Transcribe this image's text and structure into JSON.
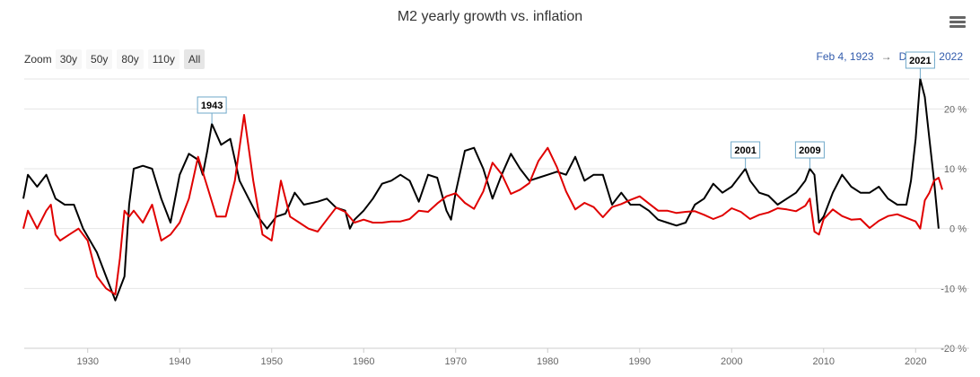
{
  "title": "M2 yearly growth vs. inflation",
  "zoom": {
    "label": "Zoom",
    "buttons": [
      "30y",
      "50y",
      "80y",
      "110y",
      "All"
    ],
    "selected": "All"
  },
  "range": {
    "from": "Feb 4, 1923",
    "separator": "→",
    "to": "Dec 31, 2022"
  },
  "colors": {
    "m2": "#000000",
    "inflation": "#e00000",
    "flag_border": "#6fa8c9",
    "grid": "#e6e6e6"
  },
  "chart_data": {
    "type": "line",
    "title": "M2 yearly growth vs. inflation",
    "xlim": [
      1923.1,
      2022.9
    ],
    "ylim": [
      -20,
      25
    ],
    "x_ticks": [
      "1930",
      "1940",
      "1950",
      "1960",
      "1970",
      "1980",
      "1990",
      "2000",
      "2010",
      "2020"
    ],
    "y_ticks": [
      "20 %",
      "10 %",
      "0 %",
      "-10 %",
      "-20 %"
    ],
    "grid": true,
    "series": [
      {
        "color": "#000000",
        "points": [
          [
            1923,
            5
          ],
          [
            1923.5,
            9
          ],
          [
            1924.5,
            7
          ],
          [
            1925.5,
            9
          ],
          [
            1926.5,
            5
          ],
          [
            1927.5,
            4
          ],
          [
            1928.5,
            4
          ],
          [
            1929.5,
            0
          ],
          [
            1931,
            -4
          ],
          [
            1932,
            -8
          ],
          [
            1933,
            -12
          ],
          [
            1934,
            -8
          ],
          [
            1934.5,
            4
          ],
          [
            1935,
            10
          ],
          [
            1936,
            10.5
          ],
          [
            1937,
            10
          ],
          [
            1938,
            5
          ],
          [
            1939,
            1
          ],
          [
            1940,
            9
          ],
          [
            1941,
            12.5
          ],
          [
            1942,
            11.5
          ],
          [
            1942.5,
            9
          ],
          [
            1943,
            13
          ],
          [
            1943.5,
            17.5
          ],
          [
            1944.5,
            14
          ],
          [
            1945.5,
            15
          ],
          [
            1946.5,
            8
          ],
          [
            1947.5,
            5
          ],
          [
            1948.5,
            2
          ],
          [
            1949.5,
            0
          ],
          [
            1950.5,
            2
          ],
          [
            1951.5,
            2.5
          ],
          [
            1952.5,
            6
          ],
          [
            1953.5,
            4
          ],
          [
            1955,
            4.5
          ],
          [
            1956,
            5
          ],
          [
            1957,
            3.5
          ],
          [
            1958,
            3
          ],
          [
            1958.5,
            0
          ],
          [
            1959,
            1.5
          ],
          [
            1960,
            3
          ],
          [
            1961,
            5
          ],
          [
            1962,
            7.5
          ],
          [
            1963,
            8
          ],
          [
            1964,
            9
          ],
          [
            1965,
            8
          ],
          [
            1966,
            4.5
          ],
          [
            1967,
            9
          ],
          [
            1968,
            8.5
          ],
          [
            1969,
            3
          ],
          [
            1969.5,
            1.5
          ],
          [
            1970,
            6
          ],
          [
            1971,
            13
          ],
          [
            1972,
            13.5
          ],
          [
            1973,
            10
          ],
          [
            1974,
            5
          ],
          [
            1975,
            9
          ],
          [
            1976,
            12.5
          ],
          [
            1977,
            10
          ],
          [
            1978,
            8
          ],
          [
            1979,
            8.5
          ],
          [
            1980,
            9
          ],
          [
            1981,
            9.5
          ],
          [
            1982,
            9
          ],
          [
            1983,
            12
          ],
          [
            1984,
            8
          ],
          [
            1985,
            9
          ],
          [
            1986,
            9
          ],
          [
            1987,
            4
          ],
          [
            1988,
            6
          ],
          [
            1989,
            4
          ],
          [
            1990,
            4
          ],
          [
            1991,
            3
          ],
          [
            1992,
            1.5
          ],
          [
            1993,
            1
          ],
          [
            1994,
            0.5
          ],
          [
            1995,
            1
          ],
          [
            1996,
            4
          ],
          [
            1997,
            5
          ],
          [
            1998,
            7.5
          ],
          [
            1999,
            6
          ],
          [
            2000,
            7
          ],
          [
            2001,
            9
          ],
          [
            2001.5,
            10
          ],
          [
            2002,
            8
          ],
          [
            2003,
            6
          ],
          [
            2004,
            5.5
          ],
          [
            2005,
            4
          ],
          [
            2006,
            5
          ],
          [
            2007,
            6
          ],
          [
            2008,
            8
          ],
          [
            2008.5,
            10
          ],
          [
            2009,
            9
          ],
          [
            2009.5,
            1
          ],
          [
            2010,
            2
          ],
          [
            2011,
            6
          ],
          [
            2012,
            9
          ],
          [
            2013,
            7
          ],
          [
            2014,
            6
          ],
          [
            2015,
            6
          ],
          [
            2016,
            7
          ],
          [
            2017,
            5
          ],
          [
            2018,
            4
          ],
          [
            2019,
            4
          ],
          [
            2019.5,
            8
          ],
          [
            2020,
            15
          ],
          [
            2020.5,
            25
          ],
          [
            2021,
            22
          ],
          [
            2021.5,
            15
          ],
          [
            2022,
            8
          ],
          [
            2022.5,
            0
          ]
        ]
      },
      {
        "color": "#e00000",
        "points": [
          [
            1923,
            0
          ],
          [
            1923.5,
            3
          ],
          [
            1924.5,
            0
          ],
          [
            1925.5,
            3
          ],
          [
            1926,
            4
          ],
          [
            1926.5,
            -1
          ],
          [
            1927,
            -2
          ],
          [
            1928,
            -1
          ],
          [
            1929,
            0
          ],
          [
            1930,
            -2
          ],
          [
            1931,
            -8
          ],
          [
            1932,
            -10
          ],
          [
            1933,
            -11
          ],
          [
            1933.5,
            -5
          ],
          [
            1934,
            3
          ],
          [
            1934.5,
            2
          ],
          [
            1935,
            3
          ],
          [
            1936,
            1
          ],
          [
            1937,
            4
          ],
          [
            1938,
            -2
          ],
          [
            1939,
            -1
          ],
          [
            1940,
            1
          ],
          [
            1941,
            5
          ],
          [
            1942,
            12
          ],
          [
            1943,
            7
          ],
          [
            1944,
            2
          ],
          [
            1945,
            2
          ],
          [
            1946,
            8
          ],
          [
            1947,
            19
          ],
          [
            1948,
            8
          ],
          [
            1949,
            -1
          ],
          [
            1950,
            -2
          ],
          [
            1951,
            8
          ],
          [
            1952,
            2
          ],
          [
            1953,
            1
          ],
          [
            1954,
            0
          ],
          [
            1955,
            -0.5
          ],
          [
            1956,
            1.5
          ],
          [
            1957,
            3.5
          ],
          [
            1958,
            2.8
          ],
          [
            1959,
            1
          ],
          [
            1960,
            1.5
          ],
          [
            1961,
            1
          ],
          [
            1962,
            1
          ],
          [
            1963,
            1.2
          ],
          [
            1964,
            1.2
          ],
          [
            1965,
            1.6
          ],
          [
            1966,
            3
          ],
          [
            1967,
            2.8
          ],
          [
            1968,
            4.2
          ],
          [
            1969,
            5.4
          ],
          [
            1970,
            5.9
          ],
          [
            1971,
            4.3
          ],
          [
            1972,
            3.3
          ],
          [
            1973,
            6.2
          ],
          [
            1974,
            11
          ],
          [
            1975,
            9.1
          ],
          [
            1976,
            5.8
          ],
          [
            1977,
            6.5
          ],
          [
            1978,
            7.6
          ],
          [
            1979,
            11.3
          ],
          [
            1980,
            13.5
          ],
          [
            1981,
            10.3
          ],
          [
            1982,
            6.2
          ],
          [
            1983,
            3.2
          ],
          [
            1984,
            4.3
          ],
          [
            1985,
            3.6
          ],
          [
            1986,
            1.9
          ],
          [
            1987,
            3.6
          ],
          [
            1988,
            4.1
          ],
          [
            1989,
            4.8
          ],
          [
            1990,
            5.4
          ],
          [
            1991,
            4.2
          ],
          [
            1992,
            3
          ],
          [
            1993,
            3
          ],
          [
            1994,
            2.6
          ],
          [
            1995,
            2.8
          ],
          [
            1996,
            2.9
          ],
          [
            1997,
            2.3
          ],
          [
            1998,
            1.6
          ],
          [
            1999,
            2.2
          ],
          [
            2000,
            3.4
          ],
          [
            2001,
            2.8
          ],
          [
            2002,
            1.6
          ],
          [
            2003,
            2.3
          ],
          [
            2004,
            2.7
          ],
          [
            2005,
            3.4
          ],
          [
            2006,
            3.2
          ],
          [
            2007,
            2.9
          ],
          [
            2008,
            3.8
          ],
          [
            2008.5,
            5
          ],
          [
            2009,
            -0.5
          ],
          [
            2009.5,
            -1
          ],
          [
            2010,
            1.6
          ],
          [
            2011,
            3.2
          ],
          [
            2012,
            2.1
          ],
          [
            2013,
            1.5
          ],
          [
            2014,
            1.6
          ],
          [
            2015,
            0.1
          ],
          [
            2016,
            1.3
          ],
          [
            2017,
            2.1
          ],
          [
            2018,
            2.4
          ],
          [
            2019,
            1.8
          ],
          [
            2020,
            1.2
          ],
          [
            2020.5,
            0
          ],
          [
            2021,
            4.7
          ],
          [
            2021.5,
            6
          ],
          [
            2022,
            8
          ],
          [
            2022.5,
            8.5
          ],
          [
            2022.9,
            6.5
          ]
        ]
      }
    ],
    "flags": [
      {
        "label": "1943",
        "x": 1943.5,
        "y": 17.5
      },
      {
        "label": "2001",
        "x": 2001.5,
        "y": 10
      },
      {
        "label": "2009",
        "x": 2008.5,
        "y": 10
      },
      {
        "label": "2021",
        "x": 2020.5,
        "y": 25
      }
    ]
  }
}
